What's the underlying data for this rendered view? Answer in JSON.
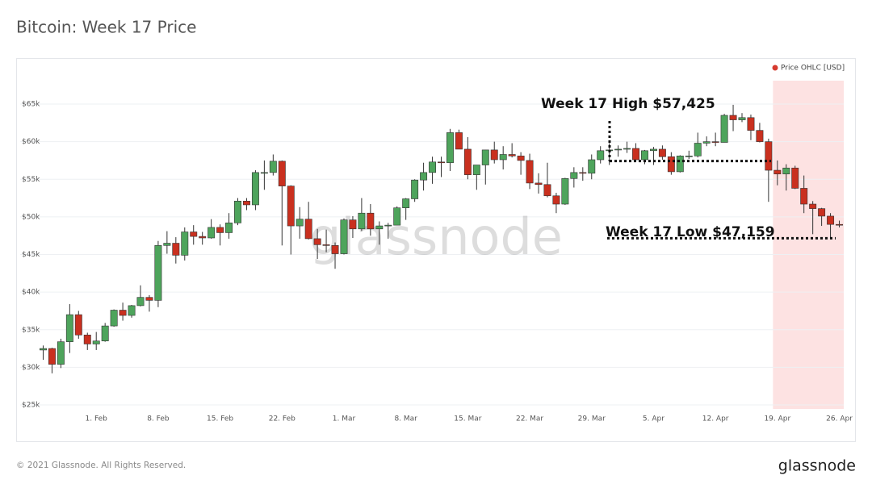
{
  "chart_data": {
    "type": "candlestick",
    "title": "Bitcoin: Week 17 Price",
    "legend": "Price OHLC [USD]",
    "legend_color": "#d63a2f",
    "watermark": "glassnode",
    "footer": "© 2021 Glassnode. All Rights Reserved.",
    "brand": "glassnode",
    "up_color": "#4ea45c",
    "down_color": "#c9301f",
    "highlight": {
      "start": "19. Apr",
      "end": "26. Apr",
      "color": "#fde2e2"
    },
    "annotations": [
      {
        "text": "Week 17 High $57,425",
        "value": 57.425
      },
      {
        "text": "Week 17 Low $47,159",
        "value": 47.159
      }
    ],
    "ylim": [
      25,
      65
    ],
    "yticks": [
      {
        "value": 25,
        "label": "$25k"
      },
      {
        "value": 30,
        "label": "$30k"
      },
      {
        "value": 35,
        "label": "$35k"
      },
      {
        "value": 40,
        "label": "$40k"
      },
      {
        "value": 45,
        "label": "$45k"
      },
      {
        "value": 50,
        "label": "$50k"
      },
      {
        "value": 55,
        "label": "$55k"
      },
      {
        "value": 60,
        "label": "$60k"
      },
      {
        "value": 65,
        "label": "$65k"
      }
    ],
    "xticks": [
      "1. Feb",
      "8. Feb",
      "15. Feb",
      "22. Feb",
      "1. Mar",
      "8. Mar",
      "15. Mar",
      "22. Mar",
      "29. Mar",
      "5. Apr",
      "12. Apr",
      "19. Apr",
      "26. Apr"
    ],
    "categories": [
      "26. Jan",
      "27. Jan",
      "28. Jan",
      "29. Jan",
      "30. Jan",
      "31. Jan",
      "1. Feb",
      "2. Feb",
      "3. Feb",
      "4. Feb",
      "5. Feb",
      "6. Feb",
      "7. Feb",
      "8. Feb",
      "9. Feb",
      "10. Feb",
      "11. Feb",
      "12. Feb",
      "13. Feb",
      "14. Feb",
      "15. Feb",
      "16. Feb",
      "17. Feb",
      "18. Feb",
      "19. Feb",
      "20. Feb",
      "21. Feb",
      "22. Feb",
      "23. Feb",
      "24. Feb",
      "25. Feb",
      "26. Feb",
      "27. Feb",
      "28. Feb",
      "1. Mar",
      "2. Mar",
      "3. Mar",
      "4. Mar",
      "5. Mar",
      "6. Mar",
      "7. Mar",
      "8. Mar",
      "9. Mar",
      "10. Mar",
      "11. Mar",
      "12. Mar",
      "13. Mar",
      "14. Mar",
      "15. Mar",
      "16. Mar",
      "17. Mar",
      "18. Mar",
      "19. Mar",
      "20. Mar",
      "21. Mar",
      "22. Mar",
      "23. Mar",
      "24. Mar",
      "25. Mar",
      "26. Mar",
      "27. Mar",
      "28. Mar",
      "29. Mar",
      "30. Mar",
      "31. Mar",
      "1. Apr",
      "2. Apr",
      "3. Apr",
      "4. Apr",
      "5. Apr",
      "6. Apr",
      "7. Apr",
      "8. Apr",
      "9. Apr",
      "10. Apr",
      "11. Apr",
      "12. Apr",
      "13. Apr",
      "14. Apr",
      "15. Apr",
      "16. Apr",
      "17. Apr",
      "18. Apr",
      "19. Apr",
      "20. Apr",
      "21. Apr",
      "22. Apr",
      "23. Apr",
      "24. Apr",
      "25. Apr",
      "26. Apr"
    ],
    "open": [
      32.3,
      32.5,
      30.4,
      33.4,
      37.0,
      34.3,
      33.1,
      33.5,
      35.5,
      37.6,
      36.9,
      38.2,
      39.3,
      38.9,
      46.2,
      46.5,
      44.9,
      48.0,
      47.4,
      47.2,
      48.6,
      47.9,
      49.2,
      52.1,
      51.6,
      55.9,
      55.9,
      57.4,
      54.1,
      48.8,
      49.7,
      47.1,
      46.3,
      46.2,
      45.1,
      49.6,
      48.4,
      50.5,
      48.4,
      48.8,
      48.9,
      51.2,
      52.4,
      54.9,
      55.9,
      57.3,
      57.2,
      61.2,
      59.0,
      55.6,
      56.9,
      58.9,
      57.6,
      58.3,
      58.1,
      57.5,
      54.5,
      54.3,
      52.8,
      51.7,
      55.1,
      55.9,
      55.8,
      57.6,
      58.8,
      58.9,
      59.0,
      59.1,
      57.6,
      58.8,
      59.0,
      58.0,
      56.0,
      58.1,
      58.1,
      59.8,
      60.0,
      59.9,
      63.5,
      62.9,
      63.2,
      61.5,
      60.0,
      56.2,
      55.7,
      56.5,
      53.8,
      51.7,
      51.1,
      50.1,
      49.0
    ],
    "high": [
      32.9,
      32.6,
      33.8,
      38.4,
      37.5,
      34.6,
      34.7,
      35.9,
      37.7,
      38.6,
      38.3,
      40.9,
      39.6,
      46.8,
      48.1,
      47.3,
      48.6,
      48.9,
      48.0,
      49.7,
      49.0,
      50.5,
      52.5,
      52.5,
      56.2,
      57.5,
      58.3,
      57.5,
      54.2,
      51.3,
      52.0,
      48.4,
      48.3,
      46.6,
      49.8,
      50.1,
      52.5,
      51.7,
      49.4,
      49.2,
      51.4,
      52.5,
      55.0,
      57.2,
      58.0,
      58.0,
      61.7,
      61.6,
      60.6,
      56.9,
      58.9,
      60.0,
      59.4,
      59.8,
      58.6,
      58.4,
      55.8,
      57.2,
      53.2,
      55.2,
      56.6,
      56.6,
      58.3,
      59.4,
      59.8,
      59.5,
      60.0,
      59.8,
      58.9,
      59.3,
      59.5,
      58.6,
      58.2,
      58.8,
      61.2,
      60.7,
      61.2,
      63.7,
      64.9,
      63.8,
      63.6,
      62.5,
      60.4,
      57.5,
      57.0,
      56.8,
      55.5,
      52.1,
      51.2,
      50.5,
      49.5
    ],
    "low": [
      31.0,
      29.2,
      29.9,
      31.9,
      33.8,
      32.3,
      32.3,
      33.4,
      35.4,
      36.2,
      36.6,
      38.1,
      37.4,
      38.0,
      45.1,
      43.8,
      44.2,
      46.3,
      46.3,
      47.1,
      46.2,
      47.1,
      48.9,
      50.9,
      50.9,
      53.6,
      55.5,
      46.2,
      45.0,
      47.1,
      47.0,
      44.4,
      45.3,
      43.1,
      45.0,
      47.2,
      48.1,
      47.5,
      46.3,
      47.1,
      48.9,
      49.6,
      52.0,
      53.5,
      54.4,
      55.3,
      56.1,
      59.0,
      55.0,
      53.6,
      54.3,
      57.1,
      56.3,
      57.9,
      55.6,
      53.7,
      53.1,
      52.6,
      50.5,
      51.6,
      53.9,
      54.8,
      55.0,
      57.1,
      56.9,
      58.0,
      58.5,
      57.5,
      57.0,
      56.9,
      57.6,
      55.6,
      55.9,
      57.7,
      57.9,
      59.4,
      59.4,
      59.9,
      61.4,
      62.6,
      60.2,
      59.9,
      52.0,
      54.2,
      53.5,
      53.7,
      50.5,
      47.7,
      48.8,
      47.2,
      48.6
    ],
    "close": [
      32.5,
      30.4,
      33.4,
      37.0,
      34.3,
      33.1,
      33.5,
      35.5,
      37.6,
      36.9,
      38.2,
      39.3,
      38.9,
      46.2,
      46.5,
      44.9,
      48.0,
      47.4,
      47.2,
      48.6,
      47.9,
      49.2,
      52.1,
      51.6,
      55.9,
      55.9,
      57.4,
      54.1,
      48.8,
      49.7,
      47.1,
      46.3,
      46.2,
      45.1,
      49.6,
      48.4,
      50.5,
      48.4,
      48.8,
      48.9,
      51.2,
      52.4,
      54.9,
      55.9,
      57.3,
      57.2,
      61.2,
      59.0,
      55.6,
      56.9,
      58.9,
      57.6,
      58.3,
      58.1,
      57.5,
      54.5,
      54.3,
      52.8,
      51.7,
      55.1,
      55.9,
      55.8,
      57.6,
      58.8,
      58.9,
      59.0,
      59.1,
      57.6,
      58.8,
      59.0,
      58.0,
      56.0,
      58.1,
      58.1,
      59.8,
      60.0,
      59.9,
      63.5,
      62.9,
      63.2,
      61.5,
      60.0,
      56.2,
      55.7,
      56.5,
      53.8,
      51.7,
      51.1,
      50.1,
      49.0,
      48.9
    ]
  }
}
